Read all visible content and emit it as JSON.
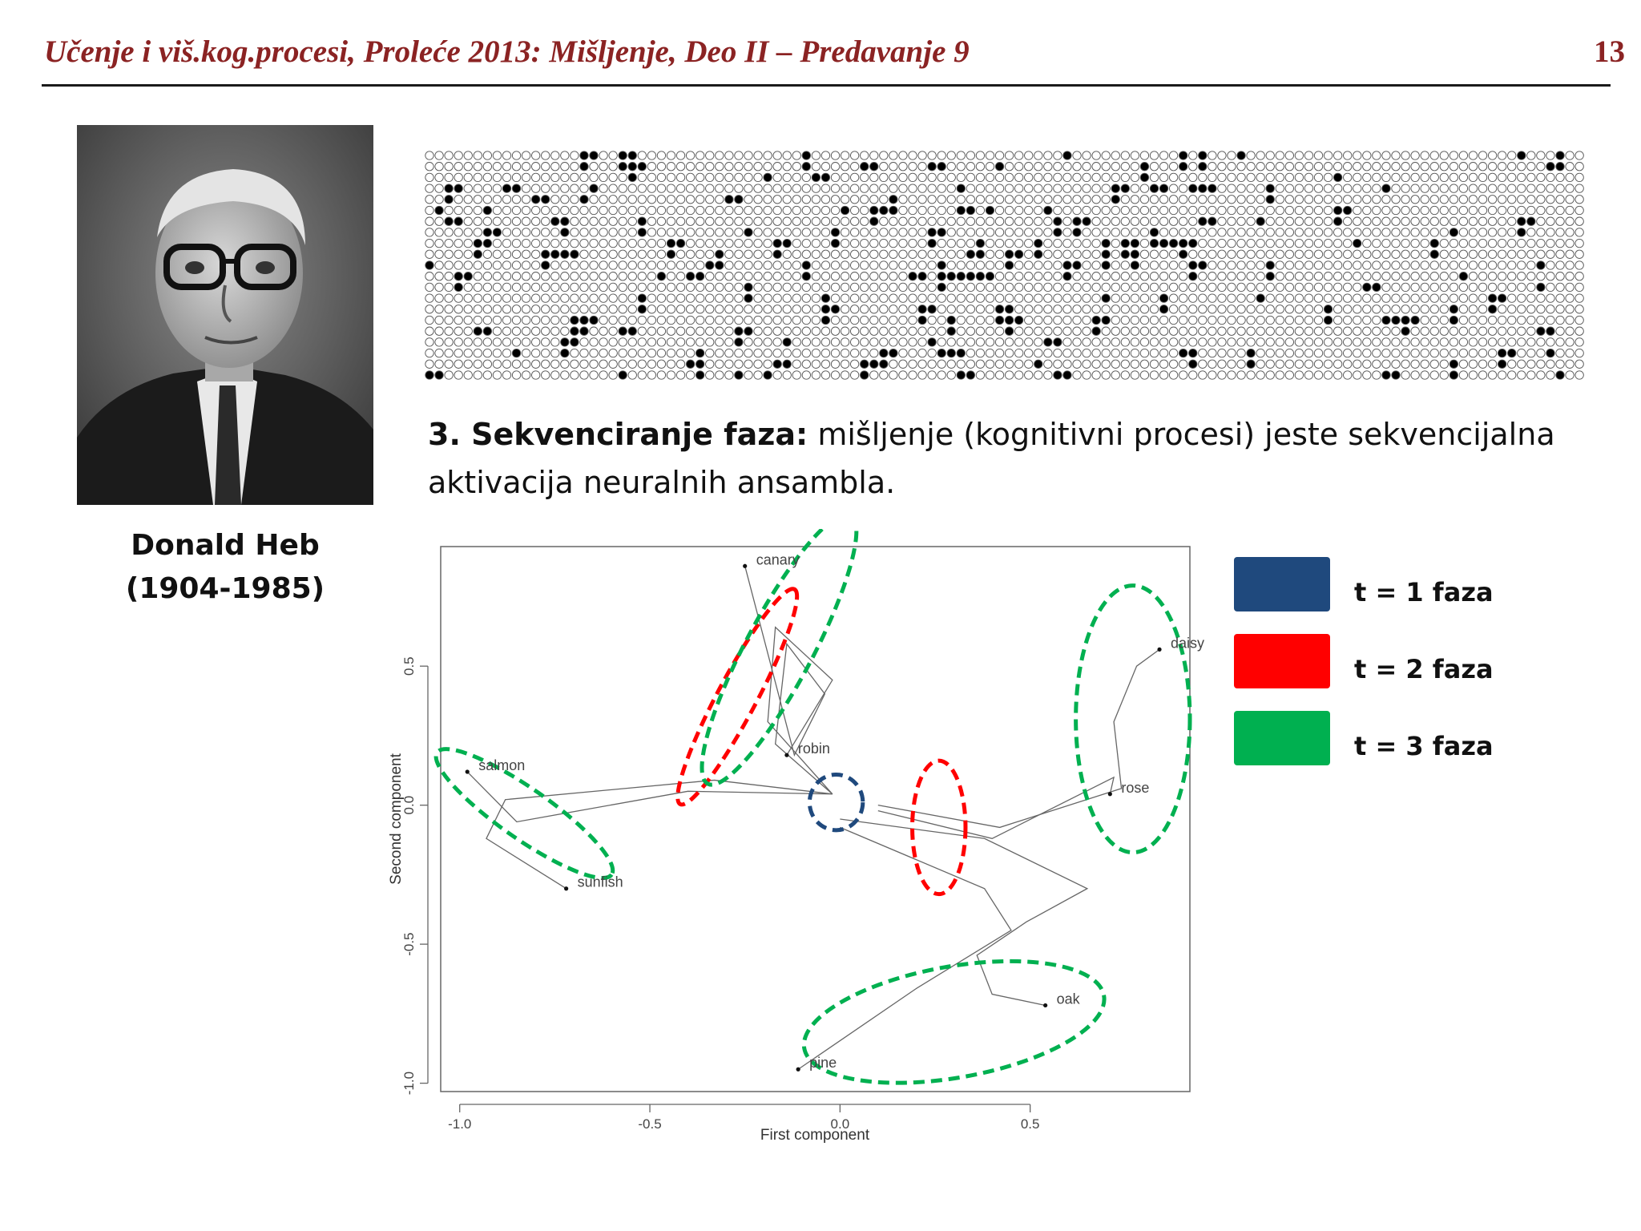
{
  "header": {
    "title": "Učenje i viš.kog.procesi, Proleće 2013: Mišljenje, Deo II – Predavanje 9",
    "page_number": "13"
  },
  "portrait": {
    "name": "Donald Heb",
    "years": "(1904-1985)"
  },
  "point": {
    "label": "3. Sekvenciranje faza:",
    "text": " mišljenje (kognitivni procesi) jeste sekvencijalna aktivacija neuralnih ansambla."
  },
  "legend": [
    {
      "label": "t = 1 faza",
      "color": "#1f497d"
    },
    {
      "label": "t = 2 faza",
      "color": "#ff0000"
    },
    {
      "label": "t = 3 faza",
      "color": "#00b050"
    }
  ],
  "chart_data": {
    "type": "scatter",
    "xlabel": "First component",
    "ylabel": "Second component",
    "xlim": [
      -1.05,
      0.92
    ],
    "ylim": [
      -1.03,
      0.93
    ],
    "xticks": [
      -1.0,
      -0.5,
      0.0,
      0.5
    ],
    "yticks": [
      -1.0,
      -0.5,
      0.0,
      0.5
    ],
    "grid": false,
    "points": [
      {
        "label": "canary",
        "x": -0.25,
        "y": 0.86
      },
      {
        "label": "robin",
        "x": -0.14,
        "y": 0.18
      },
      {
        "label": "salmon",
        "x": -0.98,
        "y": 0.12
      },
      {
        "label": "sunfish",
        "x": -0.72,
        "y": -0.3
      },
      {
        "label": "daisy",
        "x": 0.84,
        "y": 0.56
      },
      {
        "label": "rose",
        "x": 0.71,
        "y": 0.04
      },
      {
        "label": "oak",
        "x": 0.54,
        "y": -0.72
      },
      {
        "label": "pine",
        "x": -0.11,
        "y": -0.95
      }
    ],
    "trajectories": [
      [
        [
          -0.02,
          0.04
        ],
        [
          -0.17,
          0.22
        ],
        [
          -0.14,
          0.58
        ],
        [
          -0.04,
          0.4
        ],
        [
          -0.12,
          0.18
        ],
        [
          -0.25,
          0.86
        ]
      ],
      [
        [
          -0.02,
          0.04
        ],
        [
          -0.19,
          0.3
        ],
        [
          -0.17,
          0.64
        ],
        [
          -0.02,
          0.45
        ],
        [
          -0.14,
          0.18
        ]
      ],
      [
        [
          -0.02,
          0.04
        ],
        [
          -0.33,
          0.09
        ],
        [
          -0.88,
          0.02
        ],
        [
          -0.93,
          -0.12
        ],
        [
          -0.72,
          -0.3
        ]
      ],
      [
        [
          -0.02,
          0.04
        ],
        [
          -0.4,
          0.05
        ],
        [
          -0.85,
          -0.06
        ],
        [
          -0.98,
          0.12
        ]
      ],
      [
        [
          0.1,
          0.0
        ],
        [
          0.42,
          -0.08
        ],
        [
          0.74,
          0.06
        ],
        [
          0.72,
          0.3
        ],
        [
          0.78,
          0.5
        ],
        [
          0.84,
          0.56
        ]
      ],
      [
        [
          0.1,
          -0.02
        ],
        [
          0.4,
          -0.12
        ],
        [
          0.72,
          0.1
        ],
        [
          0.71,
          0.04
        ]
      ],
      [
        [
          0.0,
          -0.05
        ],
        [
          0.38,
          -0.12
        ],
        [
          0.65,
          -0.3
        ],
        [
          0.49,
          -0.42
        ],
        [
          0.36,
          -0.54
        ],
        [
          0.4,
          -0.68
        ],
        [
          0.54,
          -0.72
        ]
      ],
      [
        [
          0.0,
          -0.08
        ],
        [
          0.38,
          -0.3
        ],
        [
          0.45,
          -0.45
        ],
        [
          0.2,
          -0.66
        ],
        [
          -0.11,
          -0.95
        ]
      ]
    ],
    "ellipses": [
      {
        "phase": 1,
        "cx": -0.01,
        "cy": 0.01,
        "rx": 0.07,
        "ry": 0.1,
        "rot": 0,
        "color": "#1f497d"
      },
      {
        "phase": 2,
        "cx": -0.27,
        "cy": 0.39,
        "rx": 0.32,
        "ry": 0.07,
        "rot": -62,
        "color": "#ff0000"
      },
      {
        "phase": 2,
        "cx": 0.26,
        "cy": -0.08,
        "rx": 0.07,
        "ry": 0.24,
        "rot": 0,
        "color": "#ff0000"
      },
      {
        "phase": 3,
        "cx": -0.16,
        "cy": 0.56,
        "rx": 0.4,
        "ry": 0.12,
        "rot": -62,
        "color": "#00b050"
      },
      {
        "phase": 3,
        "cx": -0.83,
        "cy": -0.03,
        "rx": 0.28,
        "ry": 0.09,
        "rot": 35,
        "color": "#00b050"
      },
      {
        "phase": 3,
        "cx": 0.77,
        "cy": 0.31,
        "rx": 0.15,
        "ry": 0.48,
        "rot": 0,
        "color": "#00b050"
      },
      {
        "phase": 3,
        "cx": 0.3,
        "cy": -0.78,
        "rx": 0.4,
        "ry": 0.2,
        "rot": -10,
        "color": "#00b050"
      }
    ]
  }
}
